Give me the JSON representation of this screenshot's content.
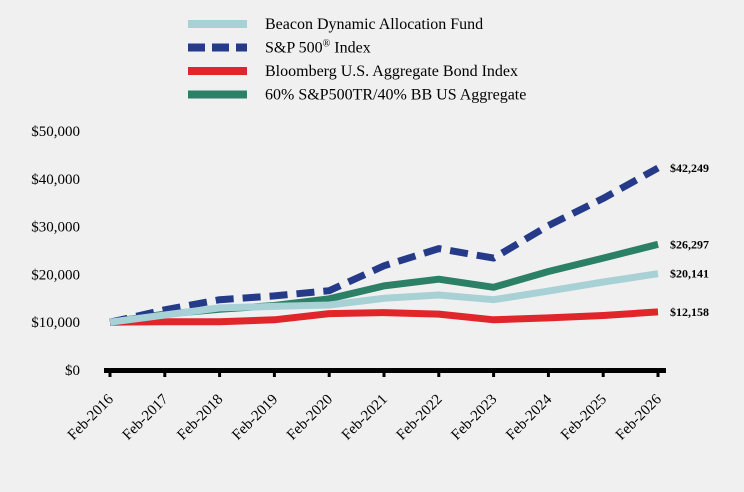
{
  "chart_data": {
    "type": "line",
    "x": [
      "Feb-2016",
      "Feb-2017",
      "Feb-2018",
      "Feb-2019",
      "Feb-2020",
      "Feb-2021",
      "Feb-2022",
      "Feb-2023",
      "Feb-2024",
      "Feb-2025",
      "Feb-2026"
    ],
    "ylim": [
      0,
      50000
    ],
    "yticks": [
      0,
      10000,
      20000,
      30000,
      40000,
      50000
    ],
    "ytick_labels": [
      "$0",
      "$10,000",
      "$20,000",
      "$30,000",
      "$40,000",
      "$50,000"
    ],
    "grid": false,
    "legend_position": "top",
    "series": [
      {
        "name": "Beacon Dynamic Allocation Fund",
        "color": "#a8d1d6",
        "style": "solid",
        "values": [
          10000,
          11500,
          13000,
          13300,
          13600,
          15000,
          15700,
          14700,
          16500,
          18400,
          20141
        ],
        "end_label": "$20,141"
      },
      {
        "name": "S&P 500® Index",
        "color": "#253b8a",
        "style": "dashed",
        "values": [
          10000,
          12600,
          14700,
          15500,
          16600,
          21800,
          25400,
          23400,
          30200,
          35900,
          42249
        ],
        "end_label": "$42,249"
      },
      {
        "name": "Bloomberg U.S. Aggregate Bond Index",
        "color": "#e0262b",
        "style": "solid",
        "values": [
          10000,
          10100,
          10100,
          10500,
          11800,
          12000,
          11700,
          10500,
          10900,
          11400,
          12158
        ],
        "end_label": "$12,158"
      },
      {
        "name": "60% S&P500TR/40% BB US Aggregate",
        "color": "#2b8066",
        "style": "solid",
        "values": [
          10000,
          11700,
          12700,
          13500,
          14900,
          17600,
          19000,
          17300,
          20600,
          23400,
          26297
        ],
        "end_label": "$26,297"
      }
    ]
  }
}
